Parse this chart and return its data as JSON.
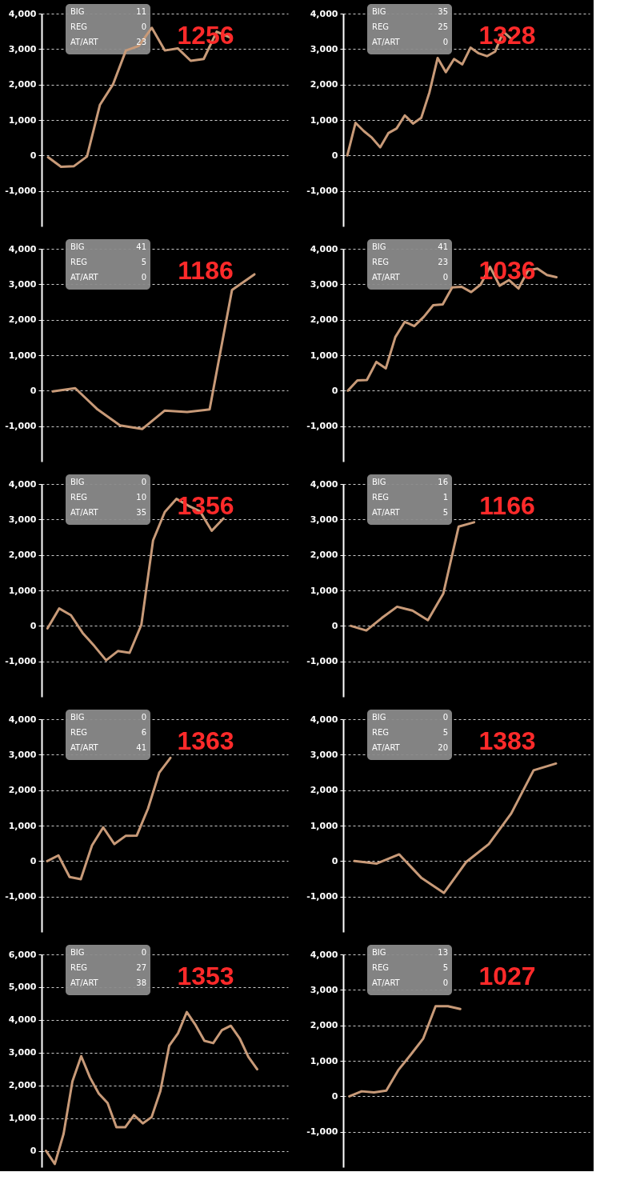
{
  "chart_data": [
    {
      "type": "line",
      "title": "1256",
      "annotations": [
        "BIG",
        "11",
        "REG",
        "0",
        "AT/ART",
        "23"
      ],
      "categories": [
        null,
        null,
        null,
        null,
        null,
        null,
        null,
        null,
        null,
        null,
        null,
        null,
        null,
        null,
        null,
        null,
        null,
        null,
        null
      ],
      "series": [
        {
          "color": "#c89a78",
          "values": [
            -50,
            -320,
            -300,
            -30,
            1430,
            2000,
            2960,
            3090,
            3600,
            2960,
            3020,
            2670,
            2720,
            3490,
            3330,
            null,
            null,
            null,
            null
          ]
        }
      ],
      "ylim": [
        -2000,
        4000
      ],
      "yticks": [
        {
          "value": 4000,
          "label": "4,000"
        },
        {
          "value": 3000,
          "label": "3,000"
        },
        {
          "value": 2000,
          "label": "2,000"
        },
        {
          "value": 1000,
          "label": "1,000"
        },
        0,
        {
          "value": -1000,
          "label": "-1,000"
        }
      ],
      "grid": "y",
      "tick_labels": "y"
    },
    {
      "type": "line",
      "title": "1328",
      "annotations": [
        "BIG",
        "35",
        "REG",
        "25",
        "AT/ART",
        "0"
      ],
      "categories": [
        null,
        null,
        null,
        null,
        null,
        null,
        null,
        null,
        null,
        null,
        null,
        null,
        null,
        null,
        null,
        null,
        null,
        null,
        null,
        null,
        null,
        null,
        null,
        null,
        null,
        null,
        null,
        null,
        null,
        null
      ],
      "series": [
        {
          "color": "#c89a78",
          "values": [
            0,
            920,
            690,
            500,
            230,
            630,
            760,
            1130,
            900,
            1060,
            1780,
            2750,
            2350,
            2720,
            2570,
            3040,
            2880,
            2800,
            2930,
            3490,
            3280,
            null,
            null,
            null,
            null,
            null,
            null,
            null,
            null,
            null
          ]
        }
      ],
      "ylim": [
        -2000,
        4000
      ],
      "yticks": [
        {
          "value": 4000,
          "label": "4,000"
        },
        {
          "value": 3000,
          "label": "3,000"
        },
        {
          "value": 2000,
          "label": "2,000"
        },
        {
          "value": 1000,
          "label": "1,000"
        },
        0,
        {
          "value": -1000,
          "label": "-1,000"
        }
      ],
      "grid": "y",
      "tick_labels": "y"
    },
    {
      "type": "line",
      "title": "1186",
      "annotations": [
        "BIG",
        "41",
        "REG",
        "5",
        "AT/ART",
        "0"
      ],
      "categories": [
        null,
        null,
        null,
        null,
        null,
        null,
        null,
        null,
        null,
        null,
        null
      ],
      "series": [
        {
          "color": "#c89a78",
          "values": [
            -20,
            70,
            -530,
            -980,
            -1080,
            -560,
            -600,
            -530,
            2840,
            3280,
            null
          ]
        }
      ],
      "ylim": [
        -2000,
        4000
      ],
      "yticks": [
        {
          "value": 4000,
          "label": "4,000"
        },
        {
          "value": 3000,
          "label": "3,000"
        },
        {
          "value": 2000,
          "label": "2,000"
        },
        {
          "value": 1000,
          "label": "1,000"
        },
        0,
        {
          "value": -1000,
          "label": "-1,000"
        }
      ],
      "grid": "y",
      "tick_labels": "y"
    },
    {
      "type": "line",
      "title": "1036",
      "annotations": [
        "BIG",
        "41",
        "REG",
        "23",
        "AT/ART",
        "0"
      ],
      "categories": [
        null,
        null,
        null,
        null,
        null,
        null,
        null,
        null,
        null,
        null,
        null,
        null,
        null,
        null,
        null,
        null,
        null,
        null,
        null,
        null,
        null,
        null,
        null,
        null,
        null,
        null
      ],
      "series": [
        {
          "color": "#c89a78",
          "values": [
            0,
            290,
            300,
            810,
            630,
            1510,
            1940,
            1820,
            2080,
            2410,
            2430,
            2910,
            2930,
            2780,
            2990,
            3490,
            2960,
            3120,
            2880,
            3390,
            3440,
            3260,
            3200,
            null,
            null,
            null
          ]
        }
      ],
      "ylim": [
        -2000,
        4000
      ],
      "yticks": [
        {
          "value": 4000,
          "label": "4,000"
        },
        {
          "value": 3000,
          "label": "3,000"
        },
        {
          "value": 2000,
          "label": "2,000"
        },
        {
          "value": 1000,
          "label": "1,000"
        },
        0,
        {
          "value": -1000,
          "label": "-1,000"
        }
      ],
      "grid": "y",
      "tick_labels": "y"
    },
    {
      "type": "line",
      "title": "1356",
      "annotations": [
        "BIG",
        "0",
        "REG",
        "10",
        "AT/ART",
        "35"
      ],
      "categories": [
        null,
        null,
        null,
        null,
        null,
        null,
        null,
        null,
        null,
        null,
        null,
        null,
        null,
        null,
        null,
        null,
        null,
        null,
        null,
        null,
        null
      ],
      "series": [
        {
          "color": "#c89a78",
          "values": [
            -70,
            490,
            300,
            -200,
            -570,
            -970,
            -710,
            -760,
            30,
            2410,
            3210,
            3580,
            3390,
            3230,
            2680,
            3030,
            null,
            null,
            null,
            null,
            null
          ]
        }
      ],
      "ylim": [
        -2000,
        4000
      ],
      "yticks": [
        {
          "value": 4000,
          "label": "4,000"
        },
        {
          "value": 3000,
          "label": "3,000"
        },
        {
          "value": 2000,
          "label": "2,000"
        },
        {
          "value": 1000,
          "label": "1,000"
        },
        0,
        {
          "value": -1000,
          "label": "-1,000"
        }
      ],
      "grid": "y",
      "tick_labels": "y"
    },
    {
      "type": "line",
      "title": "1166",
      "annotations": [
        "BIG",
        "16",
        "REG",
        "1",
        "AT/ART",
        "5"
      ],
      "categories": [
        null,
        null,
        null,
        null,
        null,
        null,
        null,
        null,
        null,
        null,
        null,
        null,
        null,
        null,
        null,
        null
      ],
      "series": [
        {
          "color": "#c89a78",
          "values": [
            0,
            -130,
            220,
            540,
            430,
            160,
            910,
            2800,
            2920,
            null,
            null,
            null,
            null,
            null,
            null,
            null
          ]
        }
      ],
      "ylim": [
        -2000,
        4000
      ],
      "yticks": [
        {
          "value": 4000,
          "label": "4,000"
        },
        {
          "value": 3000,
          "label": "3,000"
        },
        {
          "value": 2000,
          "label": "2,000"
        },
        {
          "value": 1000,
          "label": "1,000"
        },
        0,
        {
          "value": -1000,
          "label": "-1,000"
        }
      ],
      "grid": "y",
      "tick_labels": "y"
    },
    {
      "type": "line",
      "title": "1363",
      "annotations": [
        "BIG",
        "0",
        "REG",
        "6",
        "AT/ART",
        "41"
      ],
      "categories": [
        null,
        null,
        null,
        null,
        null,
        null,
        null,
        null,
        null,
        null,
        null,
        null,
        null,
        null,
        null,
        null,
        null,
        null,
        null,
        null,
        null,
        null
      ],
      "series": [
        {
          "color": "#c89a78",
          "values": [
            0,
            160,
            -450,
            -510,
            440,
            950,
            480,
            710,
            720,
            1480,
            2490,
            2910,
            null,
            null,
            null,
            null,
            null,
            null,
            null,
            null,
            null,
            null
          ]
        }
      ],
      "ylim": [
        -2000,
        4000
      ],
      "yticks": [
        {
          "value": 4000,
          "label": "4,000"
        },
        {
          "value": 3000,
          "label": "3,000"
        },
        {
          "value": 2000,
          "label": "2,000"
        },
        {
          "value": 1000,
          "label": "1,000"
        },
        0,
        {
          "value": -1000,
          "label": "-1,000"
        }
      ],
      "grid": "y",
      "tick_labels": "y"
    },
    {
      "type": "line",
      "title": "1383",
      "annotations": [
        "BIG",
        "0",
        "REG",
        "5",
        "AT/ART",
        "20"
      ],
      "categories": [
        null,
        null,
        null,
        null,
        null,
        null,
        null,
        null,
        null,
        null,
        null
      ],
      "series": [
        {
          "color": "#c89a78",
          "values": [
            0,
            -70,
            190,
            -480,
            -900,
            -20,
            480,
            1340,
            2560,
            2750,
            null
          ]
        }
      ],
      "ylim": [
        -2000,
        4000
      ],
      "yticks": [
        {
          "value": 4000,
          "label": "4,000"
        },
        {
          "value": 3000,
          "label": "3,000"
        },
        {
          "value": 2000,
          "label": "2,000"
        },
        {
          "value": 1000,
          "label": "1,000"
        },
        0,
        {
          "value": -1000,
          "label": "-1,000"
        }
      ],
      "grid": "y",
      "tick_labels": "y"
    },
    {
      "type": "line",
      "title": "1353",
      "annotations": [
        "BIG",
        "0",
        "REG",
        "27",
        "AT/ART",
        "38"
      ],
      "categories": [
        null,
        null,
        null,
        null,
        null,
        null,
        null,
        null,
        null,
        null,
        null,
        null,
        null,
        null,
        null,
        null,
        null,
        null,
        null,
        null,
        null,
        null,
        null,
        null,
        null,
        null,
        null,
        null
      ],
      "series": [
        {
          "color": "#c89a78",
          "values": [
            0,
            -400,
            520,
            2120,
            2890,
            2240,
            1750,
            1460,
            720,
            720,
            1090,
            840,
            1030,
            1830,
            3210,
            3590,
            4240,
            3840,
            3360,
            3290,
            3690,
            3820,
            3440,
            2870,
            2490,
            null,
            null,
            null
          ]
        }
      ],
      "ylim": [
        -500,
        6000
      ],
      "yticks": [
        {
          "value": 6000,
          "label": "6,000"
        },
        {
          "value": 5000,
          "label": "5,000"
        },
        {
          "value": 4000,
          "label": "4,000"
        },
        {
          "value": 3000,
          "label": "3,000"
        },
        {
          "value": 2000,
          "label": "2,000"
        },
        {
          "value": 1000,
          "label": "1,000"
        },
        0
      ],
      "grid": "y",
      "tick_labels": "y"
    },
    {
      "type": "line",
      "title": "1027",
      "annotations": [
        "BIG",
        "13",
        "REG",
        "5",
        "AT/ART",
        "0"
      ],
      "categories": [
        null,
        null,
        null,
        null,
        null,
        null,
        null,
        null,
        null,
        null,
        null,
        null,
        null,
        null,
        null,
        null,
        null,
        null,
        null,
        null
      ],
      "series": [
        {
          "color": "#c89a78",
          "values": [
            0,
            140,
            110,
            160,
            750,
            1180,
            1630,
            2540,
            2540,
            2460,
            null,
            null,
            null,
            null,
            null,
            null,
            null,
            null,
            null,
            null
          ]
        }
      ],
      "ylim": [
        -2000,
        4000
      ],
      "yticks": [
        {
          "value": 4000,
          "label": "4,000"
        },
        {
          "value": 3000,
          "label": "3,000"
        },
        {
          "value": 2000,
          "label": "2,000"
        },
        {
          "value": 1000,
          "label": "1,000"
        },
        0,
        {
          "value": -1000,
          "label": "-1,000"
        }
      ],
      "grid": "y",
      "tick_labels": "y"
    }
  ]
}
